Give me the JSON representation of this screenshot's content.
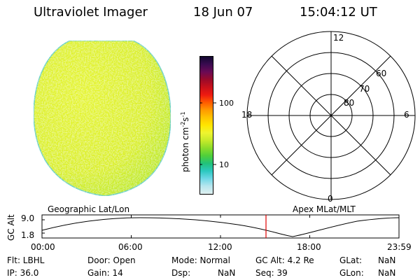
{
  "header": {
    "title": "Ultraviolet Imager",
    "date": "18 Jun 07",
    "time": "15:04:12 UT"
  },
  "colorbar": {
    "unit_label": "photon cm",
    "unit_exp1": "-2",
    "unit_s": "s",
    "unit_exp2": "-1",
    "tick_100": "100",
    "tick_10": "10",
    "colors": [
      "#dff0f0",
      "#b8e6ee",
      "#6fd7e6",
      "#2cc8c0",
      "#22c27a",
      "#4fcf3a",
      "#8bdc2a",
      "#c6ea2a",
      "#eef530",
      "#ffe600",
      "#ffc400",
      "#ff9a00",
      "#ff5a00",
      "#ee1a10",
      "#c8101a",
      "#9a0a2a",
      "#6a0a55",
      "#3a0a50",
      "#120830"
    ]
  },
  "polar": {
    "label_12": "12",
    "label_6": "6",
    "label_18": "18",
    "label_0": "0",
    "label_60": "60",
    "label_70": "70",
    "label_80": "80"
  },
  "timeline": {
    "left_label": "Geographic Lat/Lon",
    "right_label": "Apex MLat/MLT",
    "axis_label": "GC Alt",
    "y_max": "9.0",
    "y_min": "1.8",
    "x_ticks": [
      "00:00",
      "06:00",
      "12:00",
      "18:00",
      "23:59"
    ],
    "marker_color": "#e00000"
  },
  "footer": {
    "filter": "Flt: LBHL",
    "ip": "IP: 36.0",
    "door": "Door: Open",
    "gain": "Gain: 14",
    "mode": "Mode: Normal",
    "dsp_label": "Dsp:",
    "dsp_value": "NaN",
    "gc_alt": "GC Alt: 4.2 Re",
    "seq": "Seq: 39",
    "glat_label": "GLat:",
    "glat_value": "NaN",
    "glon_label": "GLon:",
    "glon_value": "NaN"
  }
}
